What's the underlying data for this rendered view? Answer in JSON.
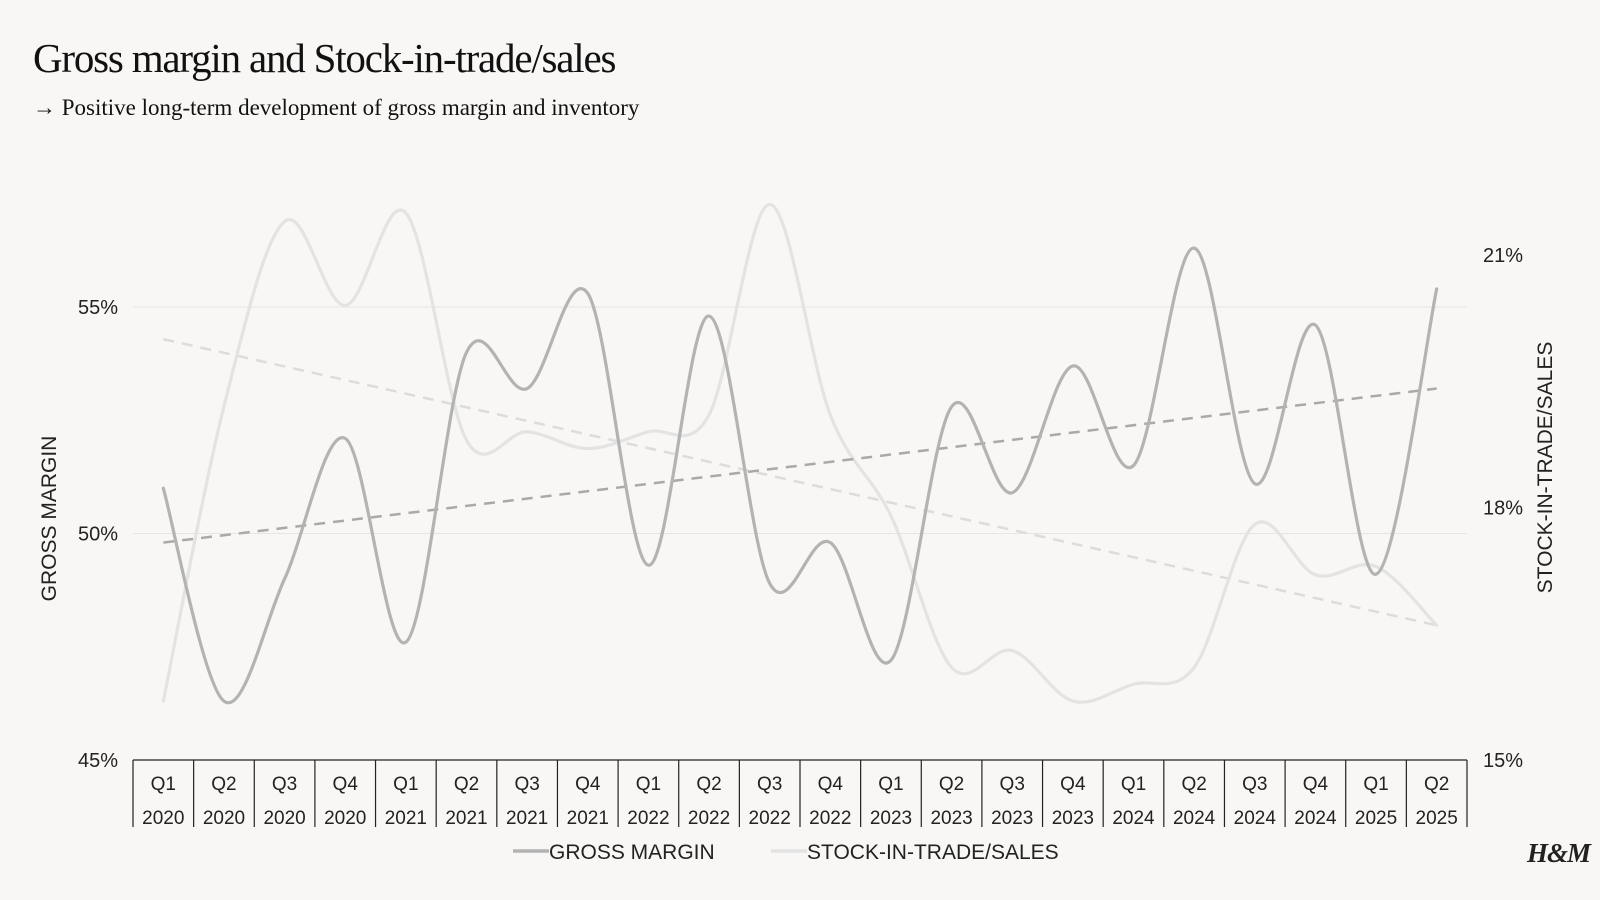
{
  "page": {
    "title": "Gross margin and Stock-in-trade/sales",
    "subtitle": "→ Positive long-term development of gross margin and inventory",
    "logo": "H&M"
  },
  "chart_data": {
    "type": "line",
    "categories": [
      [
        "Q1",
        "2020"
      ],
      [
        "Q2",
        "2020"
      ],
      [
        "Q3",
        "2020"
      ],
      [
        "Q4",
        "2020"
      ],
      [
        "Q1",
        "2021"
      ],
      [
        "Q2",
        "2021"
      ],
      [
        "Q3",
        "2021"
      ],
      [
        "Q4",
        "2021"
      ],
      [
        "Q1",
        "2022"
      ],
      [
        "Q2",
        "2022"
      ],
      [
        "Q3",
        "2022"
      ],
      [
        "Q4",
        "2022"
      ],
      [
        "Q1",
        "2023"
      ],
      [
        "Q2",
        "2023"
      ],
      [
        "Q3",
        "2023"
      ],
      [
        "Q4",
        "2023"
      ],
      [
        "Q1",
        "2024"
      ],
      [
        "Q2",
        "2024"
      ],
      [
        "Q3",
        "2024"
      ],
      [
        "Q4",
        "2024"
      ],
      [
        "Q1",
        "2025"
      ],
      [
        "Q2",
        "2025"
      ]
    ],
    "series": [
      {
        "name": "GROSS MARGIN",
        "axis": "left",
        "color": "#b3b3b3",
        "values": [
          51.0,
          46.3,
          49.0,
          52.1,
          47.6,
          54.0,
          53.2,
          55.3,
          49.3,
          54.8,
          48.9,
          49.8,
          47.2,
          52.8,
          50.9,
          53.7,
          51.5,
          56.3,
          51.1,
          54.6,
          49.1,
          55.4
        ],
        "trend": [
          49.8,
          53.2
        ]
      },
      {
        "name": "STOCK-IN-TRADE/SALES",
        "axis": "right",
        "color": "#e3e3e3",
        "values": [
          15.7,
          19.2,
          21.4,
          20.4,
          21.5,
          18.8,
          18.9,
          18.7,
          18.9,
          19.1,
          21.6,
          19.1,
          17.9,
          16.1,
          16.3,
          15.7,
          15.9,
          16.1,
          17.8,
          17.2,
          17.3,
          16.6
        ],
        "trend": [
          20.0,
          16.6
        ]
      }
    ],
    "y_left": {
      "label": "GROSS MARGIN",
      "min": 45,
      "max": 57.5,
      "ticks": [
        45,
        50,
        55
      ],
      "tick_labels": [
        "45%",
        "50%",
        "55%"
      ]
    },
    "y_right": {
      "label": "STOCK-IN-TRADE/SALES",
      "min": 15,
      "max": 22,
      "ticks": [
        15,
        18,
        21
      ],
      "tick_labels": [
        "15%",
        "18%",
        "21%"
      ]
    },
    "gridlines": [
      50,
      55
    ],
    "legend": {
      "position": "bottom",
      "items": [
        "GROSS MARGIN",
        "STOCK-IN-TRADE/SALES"
      ]
    }
  }
}
